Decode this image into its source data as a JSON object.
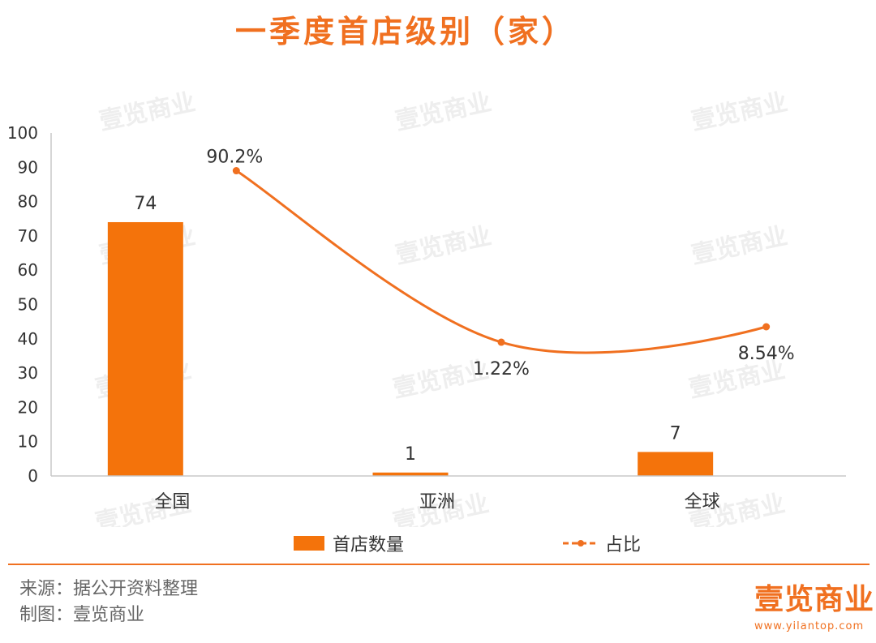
{
  "title": "一季度首店级别（家）",
  "watermark_text": "壹览商业",
  "chart_data": {
    "type": "bar",
    "categories": [
      "全国",
      "亚洲",
      "全球"
    ],
    "ylim": [
      0,
      100
    ],
    "yticks": [
      0,
      10,
      20,
      30,
      40,
      50,
      60,
      70,
      80,
      90,
      100
    ],
    "grid": false,
    "legend_position": "bottom",
    "series": [
      {
        "name": "首店数量",
        "type": "bar",
        "values": [
          74,
          1,
          7
        ],
        "labels": [
          "74",
          "1",
          "7"
        ],
        "color": "#f4730b"
      },
      {
        "name": "占比",
        "type": "line",
        "values": [
          90.2,
          1.22,
          8.54
        ],
        "plot_positions": [
          89,
          39,
          43.5
        ],
        "labels": [
          "90.2%",
          "1.22%",
          "8.54%"
        ],
        "color": "#f07020"
      }
    ]
  },
  "footer": {
    "source": "来源：据公开资料整理",
    "made_by": "制图：壹览商业"
  },
  "brand": {
    "name": "壹览商业",
    "url": "www.yilantop.com"
  }
}
